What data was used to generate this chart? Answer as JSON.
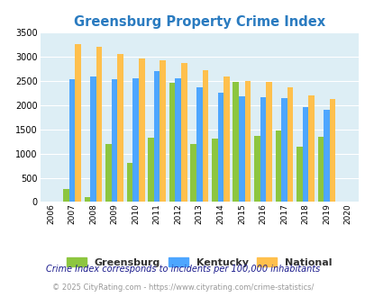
{
  "title": "Greensburg Property Crime Index",
  "years": [
    2006,
    2007,
    2008,
    2009,
    2010,
    2011,
    2012,
    2013,
    2014,
    2015,
    2016,
    2017,
    2018,
    2019,
    2020
  ],
  "greensburg": [
    0,
    270,
    100,
    1190,
    800,
    1320,
    2460,
    1200,
    1310,
    2490,
    1360,
    1470,
    1140,
    1350,
    0
  ],
  "kentucky": [
    0,
    2530,
    2600,
    2535,
    2555,
    2700,
    2550,
    2370,
    2250,
    2180,
    2175,
    2140,
    1965,
    1910,
    0
  ],
  "national": [
    0,
    3260,
    3200,
    3050,
    2960,
    2920,
    2870,
    2730,
    2600,
    2510,
    2490,
    2370,
    2210,
    2120,
    0
  ],
  "greensburg_color": "#8dc63f",
  "kentucky_color": "#4da6ff",
  "national_color": "#ffc04d",
  "bg_color": "#ddeef5",
  "ylim": [
    0,
    3500
  ],
  "yticks": [
    0,
    500,
    1000,
    1500,
    2000,
    2500,
    3000,
    3500
  ],
  "legend_labels": [
    "Greensburg",
    "Kentucky",
    "National"
  ],
  "footnote1": "Crime Index corresponds to incidents per 100,000 inhabitants",
  "footnote2": "© 2025 CityRating.com - https://www.cityrating.com/crime-statistics/",
  "title_color": "#2a7bc0",
  "footnote1_color": "#1a1a8c",
  "footnote2_color": "#999999"
}
